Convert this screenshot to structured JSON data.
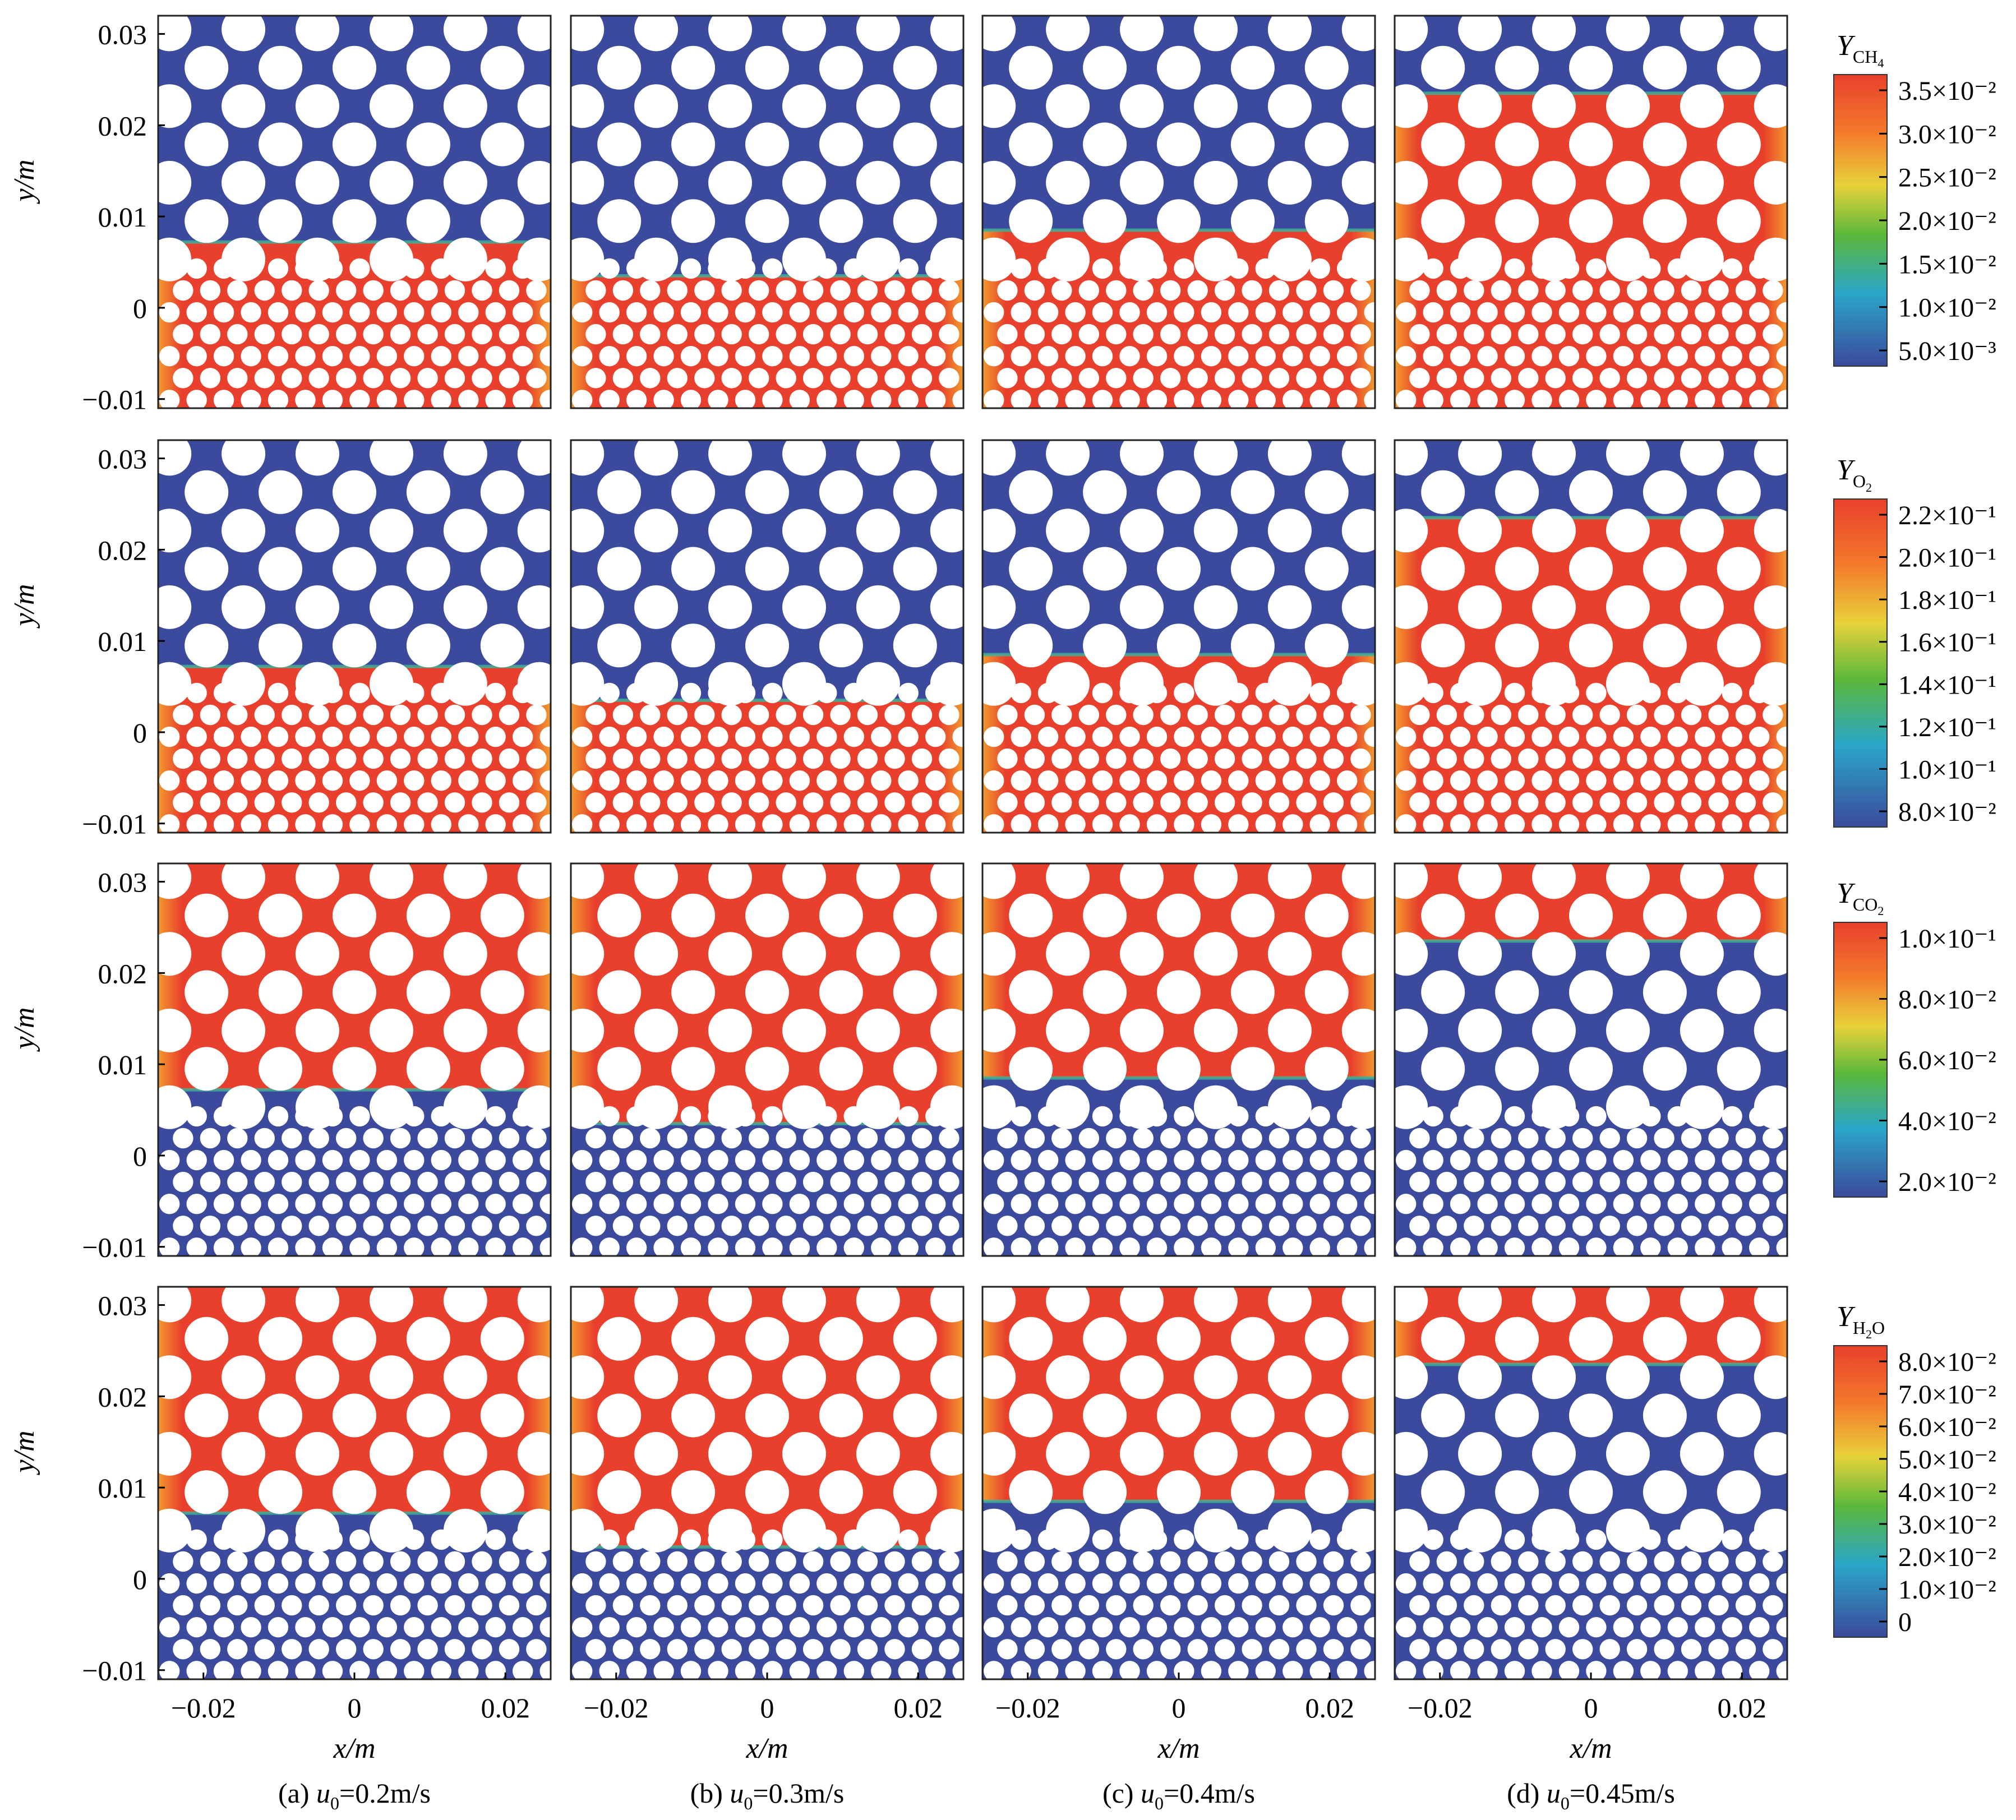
{
  "figure": {
    "colors": {
      "low": "#3b4a9c",
      "high": "#e8402c",
      "particle": "#ffffff",
      "frame": "#222222"
    },
    "x_axis": {
      "label": "x/m",
      "ticks": [
        "−0.02",
        "0",
        "0.02"
      ],
      "tick_values": [
        -0.02,
        0,
        0.02
      ],
      "range": [
        -0.026,
        0.026
      ]
    },
    "y_axis": {
      "label": "y/m",
      "ticks": [
        "0.03",
        "0.02",
        "0.01",
        "0",
        "−0.01"
      ],
      "tick_values": [
        0.03,
        0.02,
        0.01,
        0,
        -0.01
      ],
      "range": [
        -0.011,
        0.032
      ]
    },
    "columns": [
      {
        "prefix": "(a) ",
        "u": "u",
        "sub": "0",
        "value": "=0.2m/s",
        "u0": 0.2
      },
      {
        "prefix": "(b) ",
        "u": "u",
        "sub": "0",
        "value": "=0.3m/s",
        "u0": 0.3
      },
      {
        "prefix": "(c) ",
        "u": "u",
        "sub": "0",
        "value": "=0.4m/s",
        "u0": 0.4
      },
      {
        "prefix": "(d) ",
        "u": "u",
        "sub": "0",
        "value": "=0.45m/s",
        "u0": 0.45
      }
    ],
    "rows": [
      {
        "species": "CH4",
        "title_main": "Y",
        "title_sub": "CH",
        "title_subsub": "4",
        "colorbar_labels": [
          "3.5×10⁻²",
          "3.0×10⁻²",
          "2.5×10⁻²",
          "2.0×10⁻²",
          "1.5×10⁻²",
          "1.0×10⁻²",
          "5.0×10⁻³"
        ],
        "colorbar_values": [
          0.035,
          0.03,
          0.025,
          0.02,
          0.015,
          0.01,
          0.005
        ],
        "high_region": "below_front"
      },
      {
        "species": "O2",
        "title_main": "Y",
        "title_sub": "O",
        "title_subsub": "2",
        "colorbar_labels": [
          "2.2×10⁻¹",
          "2.0×10⁻¹",
          "1.8×10⁻¹",
          "1.6×10⁻¹",
          "1.4×10⁻¹",
          "1.2×10⁻¹",
          "1.0×10⁻¹",
          "8.0×10⁻²"
        ],
        "colorbar_values": [
          0.22,
          0.2,
          0.18,
          0.16,
          0.14,
          0.12,
          0.1,
          0.08
        ],
        "high_region": "below_front"
      },
      {
        "species": "CO2",
        "title_main": "Y",
        "title_sub": "CO",
        "title_subsub": "2",
        "colorbar_labels": [
          "1.0×10⁻¹",
          "8.0×10⁻²",
          "6.0×10⁻²",
          "4.0×10⁻²",
          "2.0×10⁻²"
        ],
        "colorbar_values": [
          0.1,
          0.08,
          0.06,
          0.04,
          0.02
        ],
        "high_region": "above_front"
      },
      {
        "species": "H2O",
        "title_main": "Y",
        "title_sub": "H",
        "title_subsub": "2",
        "title_tail": "O",
        "colorbar_labels": [
          "8.0×10⁻²",
          "7.0×10⁻²",
          "6.0×10⁻²",
          "5.0×10⁻²",
          "4.0×10⁻²",
          "3.0×10⁻²",
          "2.0×10⁻²",
          "1.0×10⁻²",
          "0"
        ],
        "colorbar_values": [
          0.08,
          0.07,
          0.06,
          0.05,
          0.04,
          0.03,
          0.02,
          0.01,
          0
        ],
        "high_region": "above_front"
      }
    ],
    "flame_front_y": [
      0.0072,
      0.0035,
      0.0085,
      0.0235
    ]
  },
  "chart_data": {
    "type": "heatmap",
    "xlabel": "x/m",
    "ylabel": "y/m",
    "xlim": [
      -0.026,
      0.026
    ],
    "ylim": [
      -0.011,
      0.032
    ],
    "x_ticks": [
      -0.02,
      0,
      0.02
    ],
    "y_ticks": [
      -0.01,
      0,
      0.01,
      0.02,
      0.03
    ],
    "panels_u0_m_per_s": [
      0.2,
      0.3,
      0.4,
      0.45
    ],
    "species": [
      "CH4",
      "O2",
      "CO2",
      "H2O"
    ],
    "flame_front_y_m": [
      0.0072,
      0.0035,
      0.0085,
      0.0235
    ],
    "colorbar_ranges": {
      "CH4": [
        0.005,
        0.035
      ],
      "O2": [
        0.08,
        0.22
      ],
      "CO2": [
        0.02,
        0.1
      ],
      "H2O": [
        0,
        0.08
      ]
    }
  }
}
